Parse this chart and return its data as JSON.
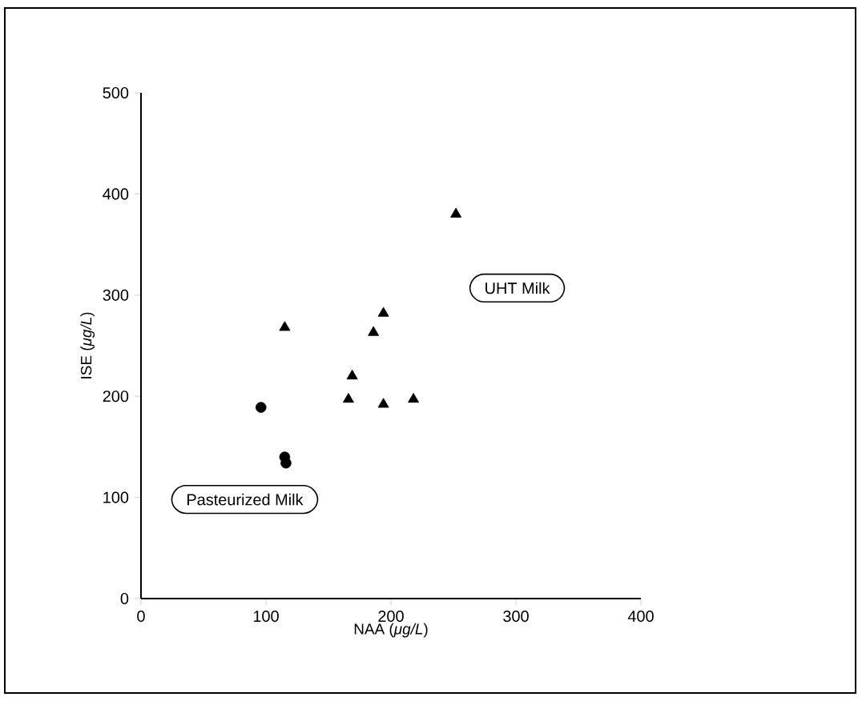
{
  "chart_data": {
    "type": "scatter",
    "xlabel": "NAA (*μg/L*)",
    "ylabel": "ISE (*μg/L*)",
    "xlim": [
      0,
      400
    ],
    "ylim": [
      0,
      500
    ],
    "xticks": [
      0,
      100,
      200,
      300,
      400
    ],
    "yticks": [
      0,
      100,
      200,
      300,
      400,
      500
    ],
    "annotations": [
      "Pasteurized Milk",
      "UHT Milk"
    ],
    "series": [
      {
        "color": "#000000",
        "marker": "circle",
        "x": [
          96,
          115,
          116
        ],
        "values": [
          189,
          140,
          134
        ]
      },
      {
        "color": "#000000",
        "marker": "triangle",
        "x": [
          115,
          166,
          169,
          186,
          194,
          194,
          218,
          252
        ],
        "values": [
          268,
          197,
          220,
          263,
          282,
          192,
          197,
          380
        ]
      }
    ]
  }
}
